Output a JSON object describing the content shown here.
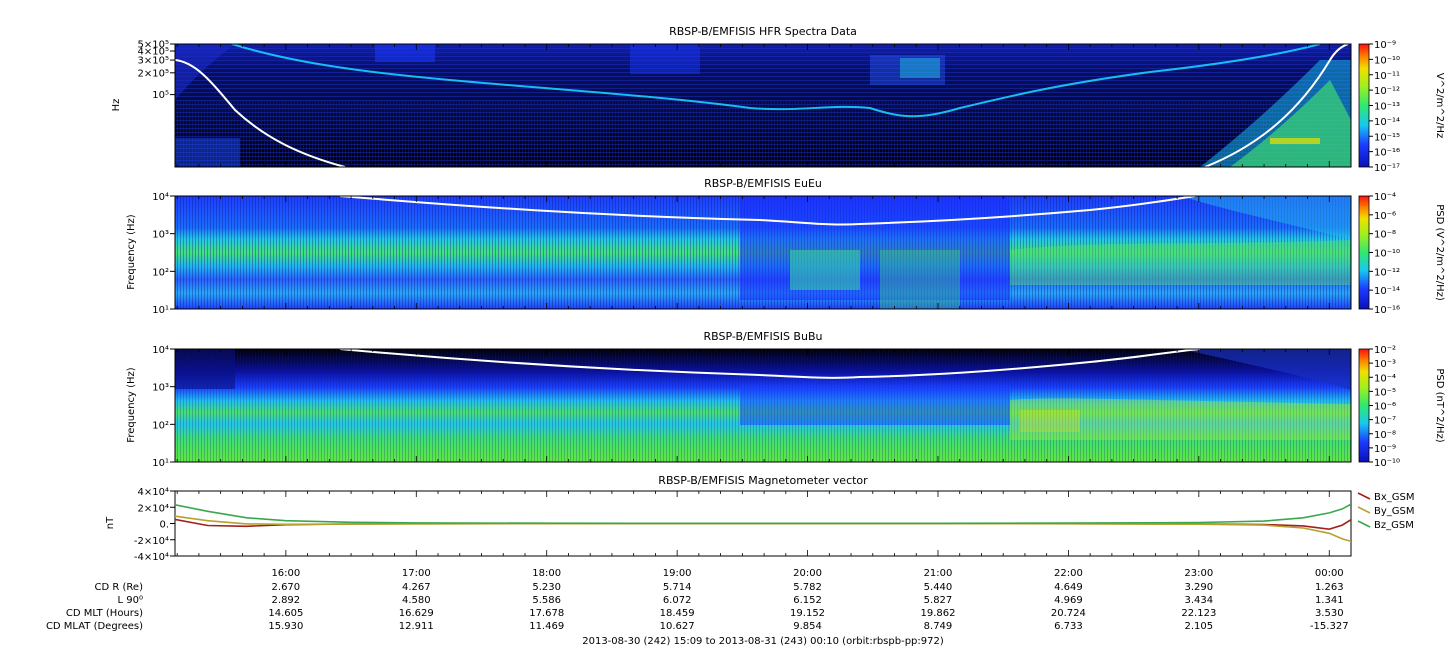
{
  "chart_data": [
    {
      "type": "heatmap",
      "title": "RBSP-B/EMFISIS  HFR Spectra Data",
      "ylabel": "Hz",
      "yscale": "log",
      "ylim": [
        10000,
        500000
      ],
      "ytick_labels": [
        "5×10⁵",
        "4×10⁵",
        "3×10⁵",
        "2×10⁵",
        "10⁵"
      ],
      "colorbar_label": "V^2/m^2/Hz",
      "colorbar_range": [
        1e-17,
        1e-09
      ],
      "colorbar_ticks": [
        "10⁻⁹",
        "10⁻¹⁰",
        "10⁻¹¹",
        "10⁻¹²",
        "10⁻¹³",
        "10⁻¹⁴",
        "10⁻¹⁵",
        "10⁻¹⁶",
        "10⁻¹⁷"
      ]
    },
    {
      "type": "heatmap",
      "title": "RBSP-B/EMFISIS  EuEu",
      "ylabel": "Frequency (Hz)",
      "yscale": "log",
      "ylim": [
        10,
        10000
      ],
      "ytick_labels": [
        "10⁴",
        "10³",
        "10²",
        "10¹"
      ],
      "colorbar_label": "PSD (V^2/m^2/Hz)",
      "colorbar_range": [
        1e-16,
        0.0001
      ],
      "colorbar_ticks": [
        "10⁻⁴",
        "10⁻⁶",
        "10⁻⁸",
        "10⁻¹⁰",
        "10⁻¹²",
        "10⁻¹⁴",
        "10⁻¹⁶"
      ]
    },
    {
      "type": "heatmap",
      "title": "RBSP-B/EMFISIS  BuBu",
      "ylabel": "Frequency (Hz)",
      "yscale": "log",
      "ylim": [
        10,
        10000
      ],
      "ytick_labels": [
        "10⁴",
        "10³",
        "10²",
        "10¹"
      ],
      "colorbar_label": "PSD (nT^2/Hz)",
      "colorbar_range": [
        1e-10,
        0.01
      ],
      "colorbar_ticks": [
        "10⁻²",
        "10⁻³",
        "10⁻⁴",
        "10⁻⁵",
        "10⁻⁶",
        "10⁻⁷",
        "10⁻⁸",
        "10⁻⁹",
        "10⁻¹⁰"
      ]
    },
    {
      "type": "line",
      "title": "RBSP-B/EMFISIS  Magnetometer vector",
      "ylabel": "nT",
      "ylim": [
        -40000,
        40000
      ],
      "ytick_labels": [
        "4×10⁴",
        "2×10⁴",
        "0.",
        "-2×10⁴",
        "-4×10⁴"
      ],
      "x_hours": [
        15.15,
        15.4,
        15.7,
        16.0,
        16.5,
        17.0,
        18.0,
        19.0,
        20.0,
        21.0,
        22.0,
        23.0,
        23.5,
        23.8,
        24.0,
        24.1,
        24.17
      ],
      "series": [
        {
          "name": "Bx_GSM",
          "color": "#a0201c",
          "values": [
            5000,
            -2500,
            -3500,
            -1500,
            -600,
            -300,
            -200,
            -200,
            -200,
            -200,
            -300,
            -500,
            -1200,
            -3000,
            -7000,
            -2000,
            5000
          ]
        },
        {
          "name": "By_GSM",
          "color": "#b8a030",
          "values": [
            9000,
            3500,
            -500,
            -1000,
            -700,
            -500,
            -300,
            -200,
            -200,
            -200,
            -400,
            -900,
            -2000,
            -5500,
            -12000,
            -19000,
            -22000
          ]
        },
        {
          "name": "Bz_GSM",
          "color": "#3aa84a",
          "values": [
            23000,
            15000,
            7000,
            3500,
            1500,
            800,
            400,
            300,
            300,
            300,
            500,
            1200,
            3000,
            7000,
            13000,
            18000,
            24000
          ]
        }
      ]
    }
  ],
  "x_axis": {
    "tick_labels": [
      "16:00",
      "17:00",
      "18:00",
      "19:00",
      "20:00",
      "21:00",
      "22:00",
      "23:00",
      "00:00"
    ],
    "row_labels": [
      "CD R (Re)",
      "L 90⁰",
      "CD MLT (Hours)",
      "CD MLAT (Degrees)"
    ],
    "rows": [
      [
        "2.670",
        "4.267",
        "5.230",
        "5.714",
        "5.782",
        "5.440",
        "4.649",
        "3.290",
        "1.263"
      ],
      [
        "2.892",
        "4.580",
        "5.586",
        "6.072",
        "6.152",
        "5.827",
        "4.969",
        "3.434",
        "1.341"
      ],
      [
        "14.605",
        "16.629",
        "17.678",
        "18.459",
        "19.152",
        "19.862",
        "20.724",
        "22.123",
        "3.530"
      ],
      [
        "15.930",
        "12.911",
        "11.469",
        "10.627",
        "9.854",
        "8.749",
        "6.733",
        "2.105",
        "-15.327"
      ]
    ],
    "footer": "2013-08-30 (242) 15:09 to 2013-08-31 (243) 00:10 (orbit:rbspb-pp:972)"
  }
}
